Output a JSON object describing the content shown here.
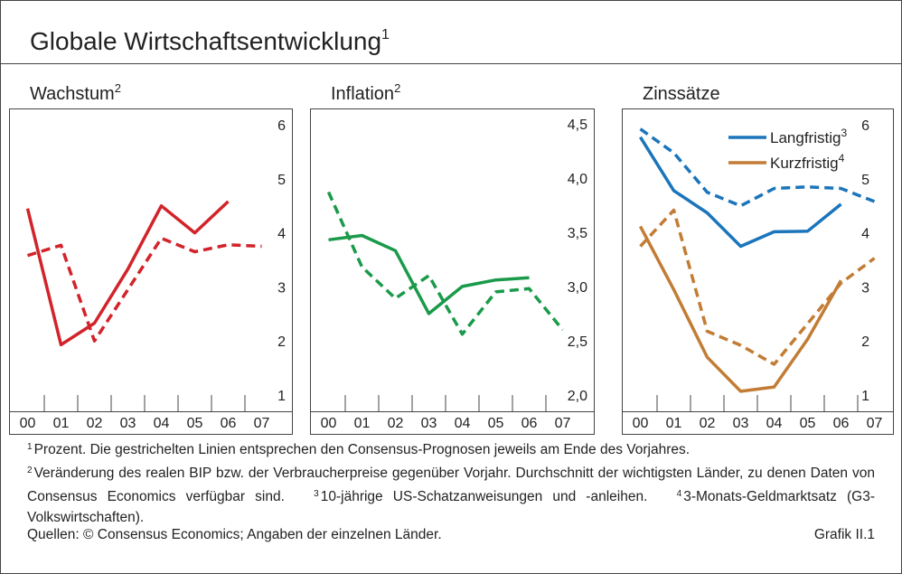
{
  "title": "Globale Wirtschaftsentwicklung",
  "title_note": "1",
  "chart_data": [
    {
      "type": "line",
      "title": "Wachstum",
      "title_note": "2",
      "categories": [
        "00",
        "01",
        "02",
        "03",
        "04",
        "05",
        "06",
        "07"
      ],
      "ylim": [
        0.7,
        6.3
      ],
      "yticks": [
        1,
        2,
        3,
        4,
        5,
        6
      ],
      "series": [
        {
          "color": "#d2232a",
          "dash": false,
          "values": [
            4.45,
            1.93,
            2.33,
            3.33,
            4.5,
            4.0,
            4.58,
            null
          ]
        },
        {
          "color": "#d2232a",
          "dash": true,
          "values": [
            3.58,
            3.77,
            2.0,
            2.95,
            3.9,
            3.65,
            3.78,
            3.75
          ]
        }
      ]
    },
    {
      "type": "line",
      "title": "Inflation",
      "title_note": "2",
      "categories": [
        "00",
        "01",
        "02",
        "03",
        "04",
        "05",
        "06",
        "07"
      ],
      "ylim": [
        1.85,
        4.64
      ],
      "yticks": [
        {
          "value": 2.0,
          "label": "2,0"
        },
        {
          "value": 2.5,
          "label": "2,5"
        },
        {
          "value": 3.0,
          "label": "3,0"
        },
        {
          "value": 3.5,
          "label": "3,5"
        },
        {
          "value": 4.0,
          "label": "4,0"
        },
        {
          "value": 4.5,
          "label": "4,5"
        }
      ],
      "series": [
        {
          "color": "#1a9a4a",
          "dash": false,
          "values": [
            3.43,
            3.47,
            3.33,
            2.75,
            3.0,
            3.06,
            3.08,
            null
          ]
        },
        {
          "color": "#1a9a4a",
          "dash": true,
          "values": [
            3.87,
            3.18,
            2.89,
            3.1,
            2.56,
            2.95,
            2.98,
            2.6
          ]
        }
      ]
    },
    {
      "type": "line",
      "title": "Zinssätze",
      "categories": [
        "00",
        "01",
        "02",
        "03",
        "04",
        "05",
        "06",
        "07"
      ],
      "ylim": [
        0.7,
        6.3
      ],
      "yticks": [
        1,
        2,
        3,
        4,
        5,
        6
      ],
      "legend": "top-right",
      "series": [
        {
          "name": "Langfristig",
          "name_note": "3",
          "color": "#1b75bb",
          "dash": false,
          "values": [
            5.77,
            4.78,
            4.37,
            3.75,
            4.02,
            4.03,
            4.53,
            null
          ]
        },
        {
          "color": "#1b75bb",
          "dash": true,
          "values": [
            5.92,
            5.48,
            4.75,
            4.5,
            4.82,
            4.85,
            4.82,
            4.58
          ]
        },
        {
          "name": "Kurzfristig",
          "name_note": "4",
          "color": "#c27c35",
          "dash": false,
          "values": [
            4.12,
            2.95,
            1.7,
            1.07,
            1.15,
            2.03,
            3.12,
            null
          ]
        },
        {
          "color": "#c27c35",
          "dash": true,
          "values": [
            3.75,
            4.42,
            2.18,
            1.92,
            1.57,
            2.32,
            3.07,
            3.53
          ]
        }
      ]
    }
  ],
  "footnotes": [
    [
      {
        "mark": "1",
        "text": "Prozent. Die gestrichelten Linien entsprechen den Consensus-Prognosen jeweils am Ende des Vorjahres."
      }
    ],
    [
      {
        "mark": "2",
        "text": "Veränderung des realen BIP bzw. der Verbraucherpreise gegenüber Vorjahr. Durchschnitt der wichtigsten Länder, zu denen Daten von Consensus Economics verfügbar sind."
      },
      {
        "mark": "3",
        "text": "10-jährige US-Schatzanweisungen und -anleihen."
      },
      {
        "mark": "4",
        "text": "3-Monats-Geldmarktsatz (G3-Volkswirtschaften)."
      }
    ]
  ],
  "source": "Quellen: © Consensus Economics; Angaben der einzelnen Länder.",
  "figure_label": "Grafik II.1"
}
